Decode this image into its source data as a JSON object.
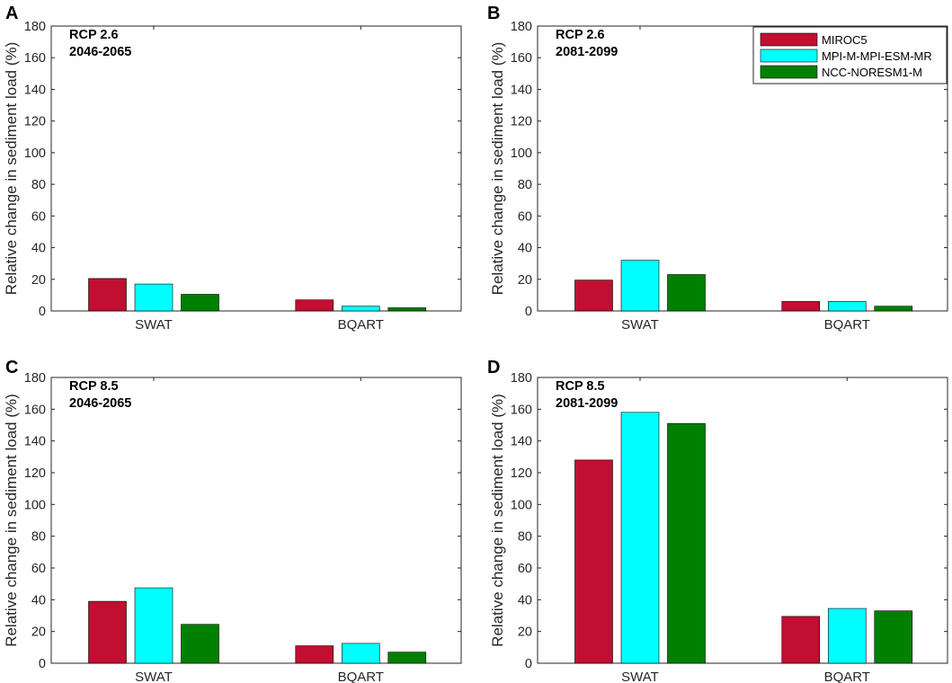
{
  "chart_data": [
    {
      "panel": "A",
      "type": "bar",
      "annotation": [
        "RCP 2.6",
        "2046-2065"
      ],
      "categories": [
        "SWAT",
        "BQART"
      ],
      "series": [
        {
          "name": "MIROC5",
          "values": [
            20.5,
            7
          ]
        },
        {
          "name": "MPI-M-MPI-ESM-MR",
          "values": [
            17,
            3
          ]
        },
        {
          "name": "NCC-NORESM1-M",
          "values": [
            10.5,
            2
          ]
        }
      ],
      "xlabel": "",
      "ylabel": "Relative change in sediment load (%)",
      "ylim": [
        0,
        180
      ],
      "yticks": [
        0,
        20,
        40,
        60,
        80,
        100,
        120,
        140,
        160,
        180
      ],
      "legend": false
    },
    {
      "panel": "B",
      "type": "bar",
      "annotation": [
        "RCP 2.6",
        "2081-2099"
      ],
      "categories": [
        "SWAT",
        "BQART"
      ],
      "series": [
        {
          "name": "MIROC5",
          "values": [
            19.5,
            6
          ]
        },
        {
          "name": "MPI-M-MPI-ESM-MR",
          "values": [
            32,
            6
          ]
        },
        {
          "name": "NCC-NORESM1-M",
          "values": [
            23,
            3
          ]
        }
      ],
      "xlabel": "",
      "ylabel": "Relative change in sediment load (%)",
      "ylim": [
        0,
        180
      ],
      "yticks": [
        0,
        20,
        40,
        60,
        80,
        100,
        120,
        140,
        160,
        180
      ],
      "legend": true,
      "legend_position": "top-right"
    },
    {
      "panel": "C",
      "type": "bar",
      "annotation": [
        "RCP 8.5",
        "2046-2065"
      ],
      "categories": [
        "SWAT",
        "BQART"
      ],
      "series": [
        {
          "name": "MIROC5",
          "values": [
            39,
            11
          ]
        },
        {
          "name": "MPI-M-MPI-ESM-MR",
          "values": [
            47.5,
            12.5
          ]
        },
        {
          "name": "NCC-NORESM1-M",
          "values": [
            24.5,
            7
          ]
        }
      ],
      "xlabel": "",
      "ylabel": "Relative change in sediment load (%)",
      "ylim": [
        0,
        180
      ],
      "yticks": [
        0,
        20,
        40,
        60,
        80,
        100,
        120,
        140,
        160,
        180
      ],
      "legend": false
    },
    {
      "panel": "D",
      "type": "bar",
      "annotation": [
        "RCP 8.5",
        "2081-2099"
      ],
      "categories": [
        "SWAT",
        "BQART"
      ],
      "series": [
        {
          "name": "MIROC5",
          "values": [
            128,
            29.5
          ]
        },
        {
          "name": "MPI-M-MPI-ESM-MR",
          "values": [
            158,
            34.5
          ]
        },
        {
          "name": "NCC-NORESM1-M",
          "values": [
            151,
            33
          ]
        }
      ],
      "xlabel": "",
      "ylabel": "Relative change in sediment load (%)",
      "ylim": [
        0,
        180
      ],
      "yticks": [
        0,
        20,
        40,
        60,
        80,
        100,
        120,
        140,
        160,
        180
      ],
      "legend": false
    }
  ],
  "colors": {
    "MIROC5": "#c00f30",
    "MPI-M-MPI-ESM-MR": "#00ffff",
    "NCC-NORESM1-M": "#008000"
  }
}
